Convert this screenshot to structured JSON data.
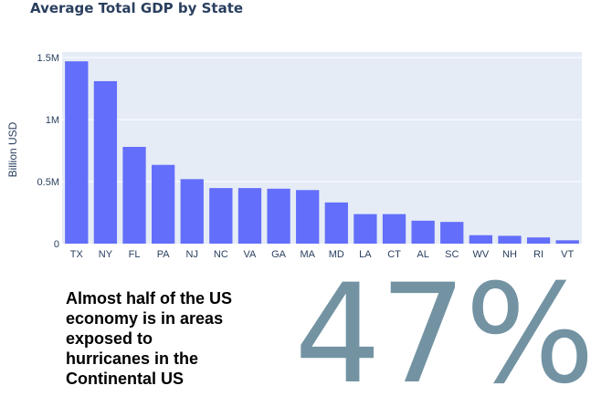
{
  "chart_data": {
    "type": "bar",
    "title": "Average Total GDP by State",
    "xlabel": "",
    "ylabel": "Billion USD",
    "categories": [
      "TX",
      "NY",
      "FL",
      "PA",
      "NJ",
      "NC",
      "VA",
      "GA",
      "MA",
      "MD",
      "LA",
      "CT",
      "AL",
      "SC",
      "WV",
      "NH",
      "RI",
      "VT"
    ],
    "values": [
      1470000,
      1310000,
      780000,
      635000,
      520000,
      448000,
      448000,
      443000,
      432000,
      332000,
      238000,
      238000,
      185000,
      175000,
      68000,
      63000,
      50000,
      27000
    ],
    "ylim": [
      0,
      1500000
    ],
    "yticks": [
      0,
      500000,
      1000000,
      1500000
    ],
    "ytick_labels": [
      "0",
      "0.5M",
      "1M",
      "1.5M"
    ],
    "grid": true,
    "legend": "none",
    "colors": {
      "bar": "#636efa",
      "plot_bg": "#e5ecf6",
      "grid": "#ffffff",
      "text": "#2a3f5f"
    }
  },
  "callout": {
    "text": "Almost half of the US\neconomy is in areas\nexposed to\nhurricanes in the\nContinental US",
    "stat": "47%",
    "stat_color": "#7393a3"
  }
}
